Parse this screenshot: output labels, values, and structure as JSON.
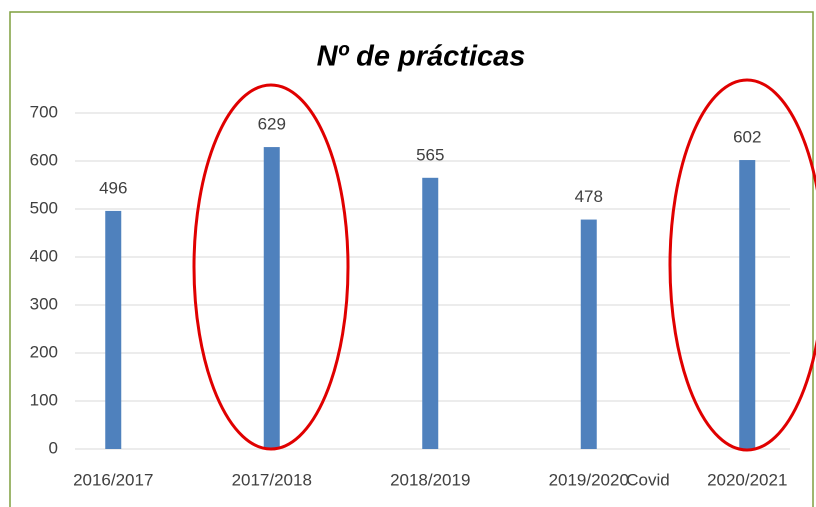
{
  "chart_data": {
    "type": "bar",
    "title": "Nº de prácticas",
    "categories": [
      "2016/2017",
      "2017/2018",
      "2018/2019",
      "2019/2020",
      "2020/2021"
    ],
    "values": [
      496,
      629,
      565,
      478,
      602
    ],
    "color": "#4f81bd",
    "ylim": [
      0,
      700
    ],
    "yticks": [
      0,
      100,
      200,
      300,
      400,
      500,
      600,
      700
    ],
    "grid": true,
    "annotations": [
      "Covid"
    ]
  }
}
